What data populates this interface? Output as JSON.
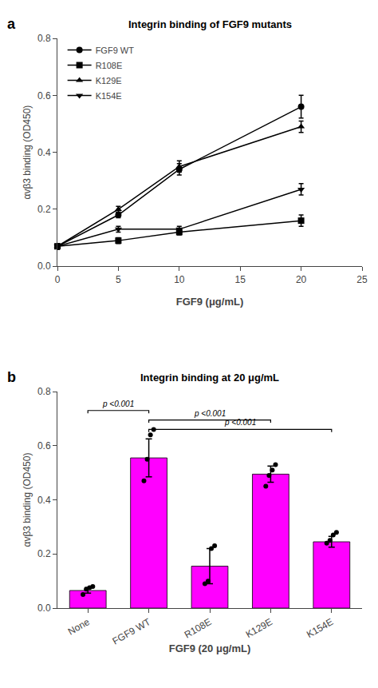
{
  "chart_data": [
    {
      "type": "line",
      "title": "Integrin binding of FGF9 mutants",
      "panel_label": "a",
      "x_label": "FGF9 (μg/mL)",
      "y_label": "αvβ3 binding (OD450)",
      "x": [
        0,
        5,
        10,
        20
      ],
      "series": [
        {
          "name": "FGF9 WT",
          "color": "#000000",
          "marker": "circle",
          "values": [
            0.07,
            0.18,
            0.34,
            0.56
          ],
          "errors": [
            0.01,
            0.01,
            0.02,
            0.04
          ]
        },
        {
          "name": "R108E",
          "color": "#000000",
          "marker": "square",
          "values": [
            0.07,
            0.09,
            0.12,
            0.16
          ],
          "errors": [
            0.01,
            0.01,
            0.01,
            0.02
          ]
        },
        {
          "name": "K129E",
          "color": "#000000",
          "marker": "triangle-up",
          "values": [
            0.07,
            0.2,
            0.35,
            0.49
          ],
          "errors": [
            0.01,
            0.01,
            0.02,
            0.02
          ]
        },
        {
          "name": "K154E",
          "color": "#000000",
          "marker": "triangle-down",
          "values": [
            0.07,
            0.13,
            0.13,
            0.27
          ],
          "errors": [
            0.01,
            0.01,
            0.01,
            0.02
          ]
        }
      ],
      "xlim": [
        0,
        25
      ],
      "xticks": [
        0,
        5,
        10,
        15,
        20,
        25
      ],
      "ylim": [
        0,
        0.8
      ],
      "yticks": [
        {
          "value": 0,
          "label": "0.0"
        },
        0.2,
        0.4,
        0.6,
        0.8
      ],
      "grid": false,
      "legend": "upper left"
    },
    {
      "type": "bar",
      "title": "Integrin binding at 20 μg/mL",
      "panel_label": "b",
      "x_label": "FGF9 (20 μg/mL)",
      "y_label": "αvβ3 binding (OD450)",
      "categories": [
        "None",
        "FGF9 WT",
        "R108E",
        "K129E",
        "K154E"
      ],
      "values": [
        0.065,
        0.555,
        0.155,
        0.495,
        0.245
      ],
      "errors": [
        0.01,
        0.07,
        0.065,
        0.03,
        0.02
      ],
      "color": "#FF00FF",
      "points": [
        [
          0.05,
          0.07,
          0.075,
          0.08
        ],
        [
          0.47,
          0.55,
          0.64,
          0.66
        ],
        [
          0.09,
          0.1,
          0.22,
          0.23
        ],
        [
          0.45,
          0.49,
          0.51,
          0.53
        ],
        [
          0.24,
          0.25,
          0.27,
          0.28
        ]
      ],
      "brackets": [
        {
          "from": 0,
          "to": 1,
          "y": 0.73,
          "label": "p <0.001"
        },
        {
          "from": 1,
          "to": 3,
          "y": 0.695,
          "label": "p <0.001"
        },
        {
          "from": 1,
          "to": 4,
          "y": 0.66,
          "label": "p <0.001"
        }
      ],
      "ylim": [
        0,
        0.8
      ],
      "yticks": [
        {
          "value": 0,
          "label": "0.0"
        },
        0.2,
        0.4,
        0.6,
        0.8
      ],
      "grid": false
    }
  ]
}
